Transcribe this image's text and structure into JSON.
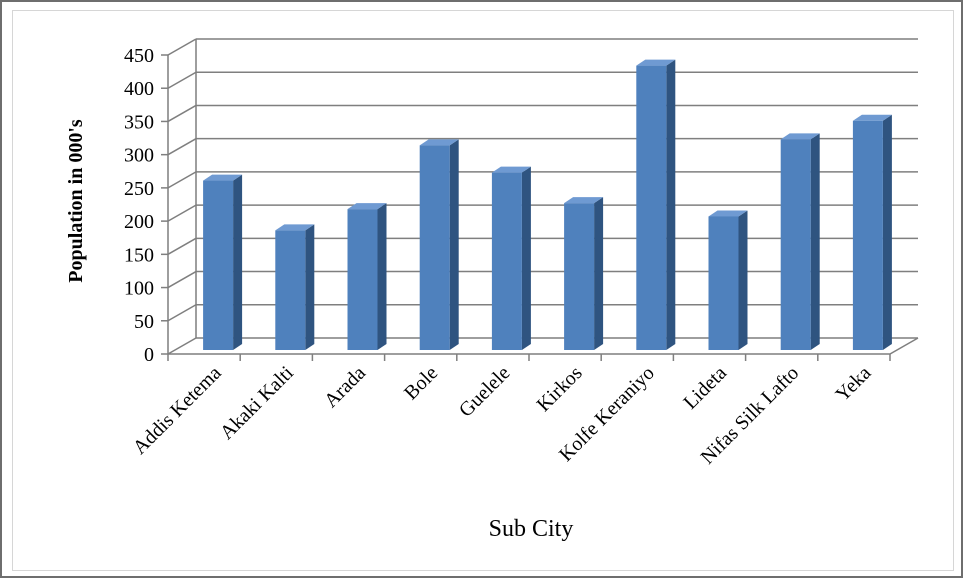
{
  "chart_data": {
    "type": "bar",
    "title": "",
    "xlabel": "Sub City",
    "ylabel": "Population in 000's",
    "categories": [
      "Addis Ketema",
      "Akaki Kalti",
      "Arada",
      "Bole",
      "Guelele",
      "Kirkos",
      "Kolfe Keraniyo",
      "Lideta",
      "Nifas Silk Lafto",
      "Yeka"
    ],
    "values": [
      255,
      180,
      212,
      308,
      267,
      221,
      428,
      201,
      317,
      345
    ],
    "ylim": [
      0,
      450
    ],
    "yticks": [
      0,
      50,
      100,
      150,
      200,
      250,
      300,
      350,
      400,
      450
    ],
    "grid": true,
    "legend": "none",
    "colors": {
      "bar_front": "#4f81bd",
      "bar_side": "#2f5480",
      "bar_top": "#6f9ad2",
      "grid": "#7f7f7f",
      "text": "#000000"
    }
  }
}
